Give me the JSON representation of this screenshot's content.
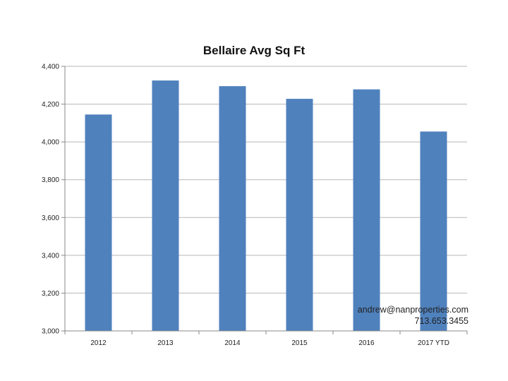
{
  "chart_data": {
    "type": "bar",
    "title": "Bellaire Avg Sq Ft",
    "categories": [
      "2012",
      "2013",
      "2014",
      "2015",
      "2016",
      "2017 YTD"
    ],
    "values": [
      4145,
      4325,
      4295,
      4228,
      4278,
      4055
    ],
    "ylim": [
      3000,
      4400
    ],
    "yticks": [
      "3,000",
      "3,200",
      "3,400",
      "3,600",
      "3,800",
      "4,000",
      "4,200",
      "4,400"
    ],
    "ytick_values": [
      3000,
      3200,
      3400,
      3600,
      3800,
      4000,
      4200,
      4400
    ],
    "grid": true,
    "bar_color": "#4f81bd",
    "grid_color": "#b7b7b7"
  },
  "contact": {
    "email": "andrew@nanproperties.com",
    "phone": "713.653.3455"
  }
}
